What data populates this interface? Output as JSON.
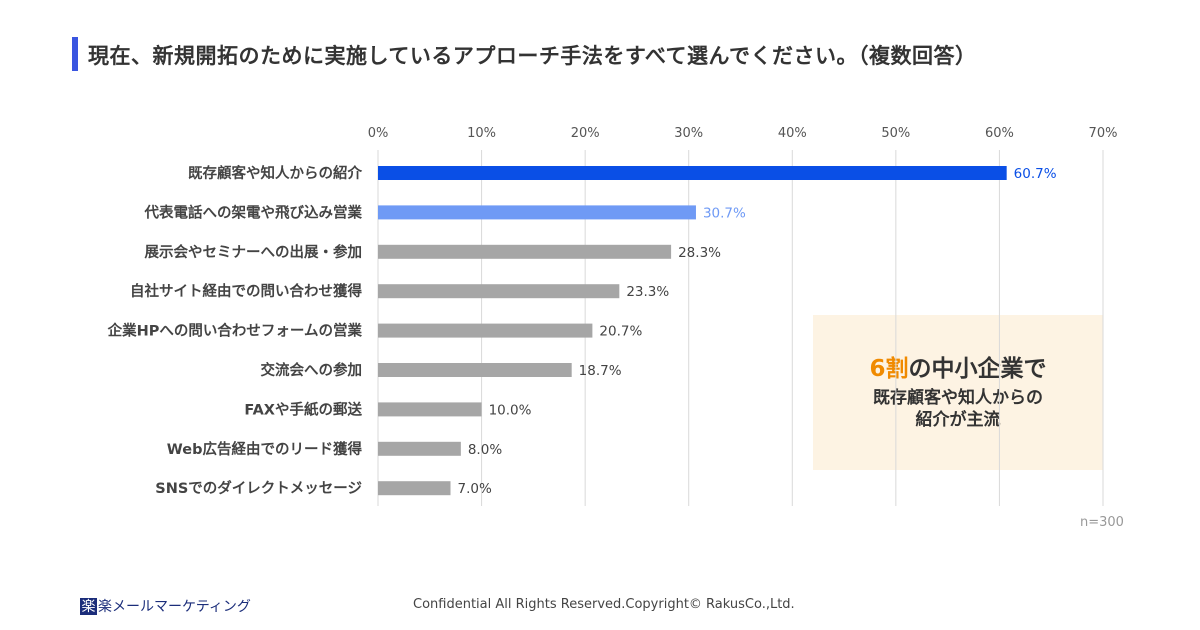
{
  "header": {
    "title": "現在、新規開拓のために実施しているアプローチ手法をすべて選んでください。（複数回答）"
  },
  "chart_data": {
    "type": "bar",
    "orientation": "horizontal",
    "categories": [
      "既存顧客や知人からの紹介",
      "代表電話への架電や飛び込み営業",
      "展示会やセミナーへの出展・参加",
      "自社サイト経由での問い合わせ獲得",
      "企業HPへの問い合わせフォームの営業",
      "交流会への参加",
      "FAXや手紙の郵送",
      "Web広告経由でのリード獲得",
      "SNSでのダイレクトメッセージ"
    ],
    "values": [
      60.7,
      30.7,
      28.3,
      23.3,
      20.7,
      18.7,
      10.0,
      8.0,
      7.0
    ],
    "data_labels": [
      "60.7%",
      "30.7%",
      "28.3%",
      "23.3%",
      "20.7%",
      "18.7%",
      "10.0%",
      "8.0%",
      "7.0%"
    ],
    "xlim": [
      0,
      70
    ],
    "xticks": [
      "0%",
      "10%",
      "20%",
      "30%",
      "40%",
      "50%",
      "60%",
      "70%"
    ],
    "grid": true,
    "colors": {
      "first": "#0a4fe6",
      "second": "#6f9af5",
      "other": "#a6a6a6"
    },
    "label_colors": {
      "first": "#0a4fe6",
      "second": "#6f9af5",
      "other": "#444444"
    },
    "note": "n=300"
  },
  "callout": {
    "highlight": "6割",
    "line1_rest": "の中小企業で",
    "line2": "既存顧客や知人からの",
    "line3": "紹介が主流"
  },
  "footer": {
    "logo_mark": "楽",
    "logo_text": "楽メールマーケティング",
    "copyright": "Confidential All Rights Reserved.Copyright© RakusCo.,Ltd."
  }
}
